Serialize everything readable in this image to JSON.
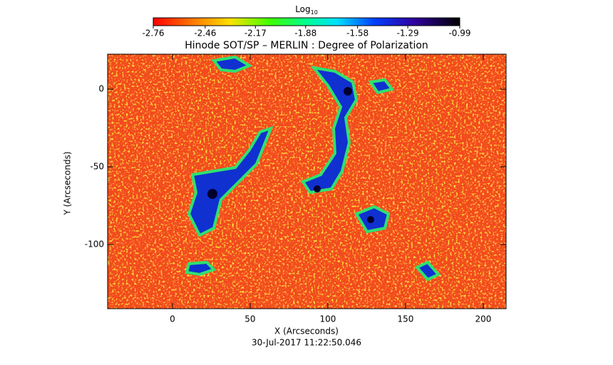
{
  "chart_data": {
    "type": "image",
    "title": "Hinode SOT/SP – MERLIN : Degree of Polarization",
    "xlabel": "X (Arcseconds)",
    "ylabel": "Y (Arcseconds)",
    "timestamp": "30-Jul-2017 11:22:50.046",
    "xlim": [
      -41.7,
      214.7
    ],
    "xticks": [
      0,
      50,
      100,
      150,
      200
    ],
    "ylim": [
      -141.3,
      22.5
    ],
    "yticks": [
      -100,
      -50,
      0
    ],
    "colorbar": {
      "label": "Log",
      "label_sub": "10",
      "lim": [
        -2.76,
        -0.99
      ],
      "ticks": [
        -2.76,
        -2.46,
        -2.17,
        -1.88,
        -1.58,
        -1.29,
        -0.99
      ]
    }
  }
}
